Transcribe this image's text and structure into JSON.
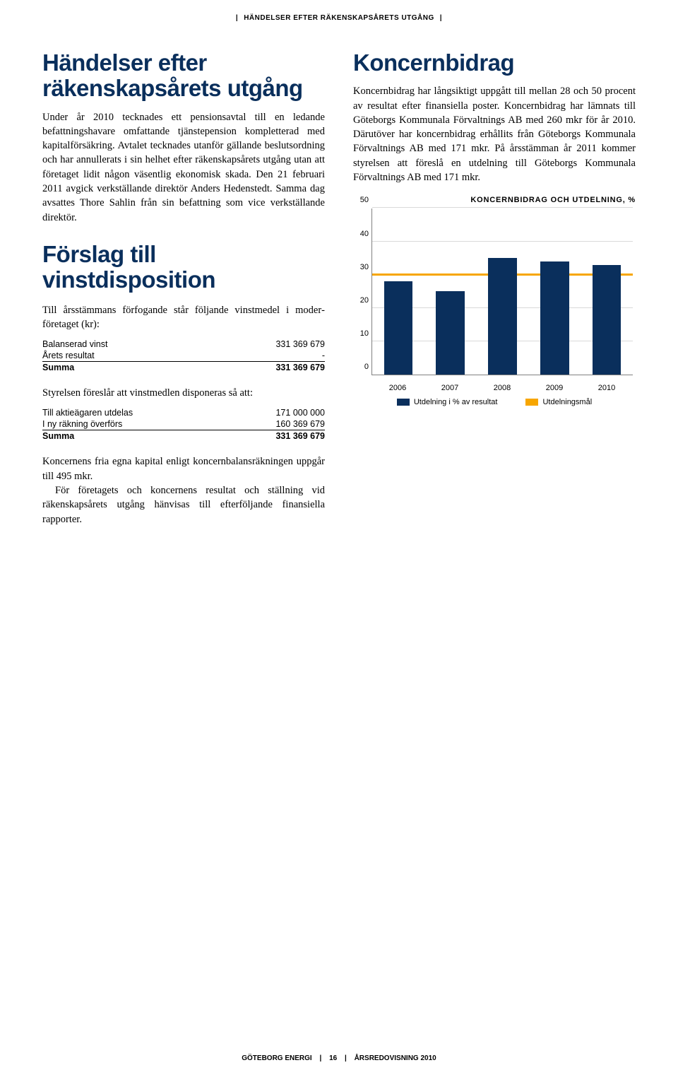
{
  "header": {
    "section": "HÄNDELSER EFTER RÄKENSKAPSÅRETS UTGÅNG"
  },
  "left": {
    "title1": "Händelser efter räkenskaps­årets utgång",
    "para1": "Under år 2010 tecknades ett pensionsavtal till en ledande befattningshavare omfattande tjänstepension kompletterad med kapitalförsäkring. Avtalet tecknades utanför gällande beslutsordning och har annullerats i sin helhet efter räken­skapsårets utgång utan att företaget lidit någon väsentlig ekonomisk skada. Den 21 februari 2011 avgick verkställande direktör Anders Hedenstedt. Samma dag avsattes Thore Sahlin från sin befattning som vice verkställande direktör.",
    "title2": "Förslag till vinstdisposition",
    "para2": "Till årsstämmans förfogande står följande vinstmedel i moder­företaget (kr):",
    "table1": [
      {
        "label": "Balanserad vinst",
        "value": "331 369 679",
        "bold": false,
        "underline": false
      },
      {
        "label": "Årets resultat",
        "value": "-",
        "bold": false,
        "underline": true
      },
      {
        "label": "Summa",
        "value": "331 369 679",
        "bold": true,
        "underline": false
      }
    ],
    "para3": "Styrelsen föreslår att vinstmedlen disponeras så att:",
    "table2": [
      {
        "label": "Till aktieägaren utdelas",
        "value": "171 000 000",
        "bold": false,
        "underline": false
      },
      {
        "label": "I ny räkning överförs",
        "value": "160 369 679",
        "bold": false,
        "underline": true
      },
      {
        "label": "Summa",
        "value": "331 369 679",
        "bold": true,
        "underline": false
      }
    ],
    "para4a": "Koncernens fria egna kapital enligt koncernbalansräkningen uppgår till 495 mkr.",
    "para4b": "För företagets och koncernens resultat och ställning vid räkenskapsårets utgång hänvisas till efterföljande finansiella rapporter."
  },
  "right": {
    "title": "Koncernbidrag",
    "para": "Koncernbidrag har långsiktigt uppgått till mellan 28 och 50 procent av resultat efter finansiella poster. Koncernbidrag har lämnats till Göteborgs Kommunala Förvaltnings AB med 260 mkr för år 2010. Därutöver har koncernbidrag erhållits från Göteborgs Kommunala Förvaltnings AB med 171 mkr. På årsstämman år 2011 kommer styrelsen att föreslå en utdelning till Göteborgs Kommunala Förvaltnings AB med 171 mkr."
  },
  "chart": {
    "title": "KONCERNBIDRAG OCH UTDELNING, %",
    "type": "bar",
    "ylim": [
      0,
      50
    ],
    "ytick_step": 10,
    "categories": [
      "2006",
      "2007",
      "2008",
      "2009",
      "2010"
    ],
    "values": [
      28,
      25,
      35,
      34,
      33
    ],
    "target": 30,
    "bar_color": "#0a2f5c",
    "target_color": "#f7a600",
    "grid_color": "#d9d9d9",
    "axis_color": "#808080",
    "legend": [
      {
        "label": "Utdelning i % av resultat",
        "color": "#0a2f5c"
      },
      {
        "label": "Utdelningsmål",
        "color": "#f7a600"
      }
    ]
  },
  "footer": {
    "company": "GÖTEBORG ENERGI",
    "page": "16",
    "doc": "ÅRSREDOVISNING 2010"
  }
}
